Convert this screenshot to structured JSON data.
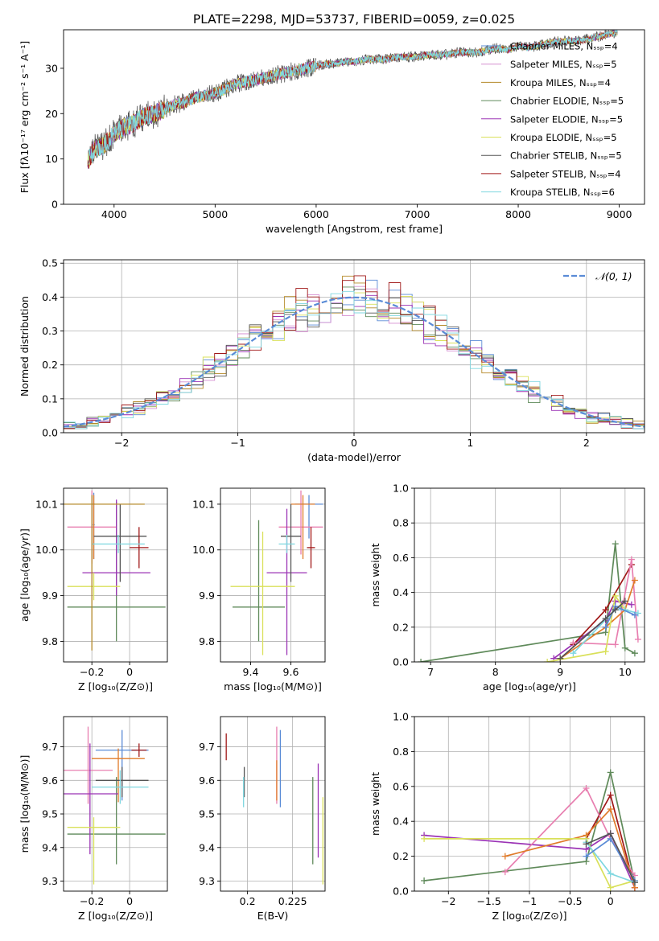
{
  "figure": {
    "title": "PLATE=2298, MJD=53737, FIBERID=0059, z=0.025"
  },
  "colors": {
    "grid": "#b0b0b0",
    "frame": "#000000"
  },
  "chart_data": [
    {
      "id": "spectrum",
      "type": "line",
      "xlabel": "wavelength [Angstrom, rest frame]",
      "ylabel": "Flux [fλ10⁻¹⁷ erg cm⁻² s⁻¹ A⁻¹]",
      "xlim": [
        3500,
        9250
      ],
      "ylim": [
        0,
        38.5
      ],
      "xticks": [
        4000,
        5000,
        6000,
        7000,
        8000,
        9000
      ],
      "yticks": [
        0,
        10,
        20,
        30
      ],
      "grid": false,
      "legend_position": "top-right",
      "spectrum_x": [
        3740,
        3800,
        3900,
        4000,
        4100,
        4200,
        4300,
        4400,
        4500,
        4600,
        4700,
        4800,
        4900,
        5000,
        5100,
        5200,
        5300,
        5400,
        5500,
        5600,
        5700,
        5800,
        5900,
        6000,
        6100,
        6200,
        6300,
        6400,
        6500,
        6600,
        6700,
        6800,
        6900,
        7000,
        7100,
        7200,
        7300,
        7400,
        7500,
        7600,
        7700,
        7800,
        7900,
        8000,
        8100,
        8200,
        8300,
        8400,
        8500,
        8600,
        8700,
        8800,
        8900,
        8980
      ],
      "spectrum_y": [
        9.5,
        12.0,
        13.0,
        15.5,
        17.0,
        18.0,
        19.5,
        20.0,
        21.0,
        22.0,
        22.5,
        23.5,
        24.0,
        24.5,
        25.5,
        26.5,
        27.0,
        27.5,
        28.0,
        28.5,
        29.0,
        29.5,
        30.0,
        30.5,
        31.0,
        31.0,
        31.5,
        31.5,
        32.0,
        32.0,
        32.0,
        32.5,
        32.5,
        32.5,
        33.0,
        33.0,
        33.0,
        33.5,
        33.5,
        33.5,
        34.0,
        34.5,
        34.0,
        35.0,
        34.5,
        35.0,
        35.5,
        36.0,
        36.0,
        36.0,
        36.5,
        37.0,
        37.5,
        38.0
      ],
      "series": [
        {
          "name": "Chabrier MILES, Nₛₛₚ=4",
          "color": "#5a8bd6"
        },
        {
          "name": "Salpeter MILES, Nₛₛₚ=5",
          "color": "#d58fd0"
        },
        {
          "name": "Kroupa MILES, Nₛₛₚ=4",
          "color": "#b58a2a"
        },
        {
          "name": "Chabrier ELODIE, Nₛₛₚ=5",
          "color": "#5f8a5a"
        },
        {
          "name": "Salpeter ELODIE, Nₛₛₚ=5",
          "color": "#9b33b5"
        },
        {
          "name": "Kroupa ELODIE, Nₛₛₚ=5",
          "color": "#d9e05a"
        },
        {
          "name": "Chabrier STELIB, Nₛₛₚ=5",
          "color": "#555555"
        },
        {
          "name": "Salpeter STELIB, Nₛₛₚ=4",
          "color": "#a01818"
        },
        {
          "name": "Kroupa STELIB, Nₛₛₚ=6",
          "color": "#7fd7e0"
        }
      ]
    },
    {
      "id": "residuals",
      "type": "line",
      "xlabel": "(data-model)/error",
      "ylabel": "Normed distribution",
      "xlim": [
        -2.5,
        2.5
      ],
      "ylim": [
        0,
        0.51
      ],
      "xticks": [
        -2,
        -1,
        0,
        1,
        2
      ],
      "yticks": [
        0.0,
        0.1,
        0.2,
        0.3,
        0.4,
        0.5
      ],
      "grid": true,
      "legend_position": "top-right",
      "gauss_label": "𝒩(0, 1)",
      "bins": [
        -2.5,
        2.5,
        50
      ]
    },
    {
      "id": "age_vs_Z",
      "type": "scatter",
      "xlabel": "Z [log₁₀(Z/Z⊙)]",
      "ylabel": "age  [log₁₀(age/yr)]",
      "xlim": [
        -0.35,
        0.2
      ],
      "ylim": [
        9.755,
        10.135
      ],
      "xticks": [
        -0.2,
        0.0
      ],
      "yticks": [
        9.8,
        9.9,
        10.0,
        10.1
      ],
      "grid": true,
      "points": [
        {
          "x": -0.19,
          "y": 10.055,
          "xerr": 0.005,
          "yerr": [
            0.075,
            0.07
          ],
          "color": "#5a8bd6"
        },
        {
          "x": -0.2,
          "y": 10.05,
          "xerr": 0.13,
          "yerr": [
            0.08,
            0.08
          ],
          "color": "#e87fb0"
        },
        {
          "x": -0.19,
          "y": 10.1,
          "xerr": 0.005,
          "yerr": [
            0.12,
            0.02
          ],
          "color": "#e07b2a"
        },
        {
          "x": -0.07,
          "y": 9.875,
          "xerr": 0.26,
          "yerr": [
            0.075,
            0.23
          ],
          "color": "#5f8a5a"
        },
        {
          "x": -0.07,
          "y": 9.95,
          "xerr": 0.18,
          "yerr": [
            0.05,
            0.16
          ],
          "color": "#9b33b5"
        },
        {
          "x": -0.19,
          "y": 9.92,
          "xerr": 0.14,
          "yerr": [
            0.03,
            0.03
          ],
          "color": "#d9e05a"
        },
        {
          "x": -0.05,
          "y": 10.03,
          "xerr": 0.14,
          "yerr": [
            0.1,
            0.07
          ],
          "color": "#555555"
        },
        {
          "x": 0.05,
          "y": 10.005,
          "xerr": 0.05,
          "yerr": [
            0.045,
            0.045
          ],
          "color": "#a01818"
        },
        {
          "x": -0.06,
          "y": 10.013,
          "xerr": 0.14,
          "yerr": [
            0.02,
            0.02
          ],
          "color": "#7fd7e0"
        },
        {
          "x": -0.2,
          "y": 10.1,
          "xerr": 0.28,
          "yerr": [
            0.32,
            0.02
          ],
          "color": "#b58a2a"
        }
      ]
    },
    {
      "id": "age_vs_mass",
      "type": "scatter",
      "xlabel": "mass [log₁₀(M/M⊙)]",
      "ylabel": "",
      "xlim": [
        9.25,
        9.77
      ],
      "ylim": [
        9.755,
        10.135
      ],
      "xticks": [
        9.4,
        9.6
      ],
      "yticks": [
        9.8,
        9.9,
        10.0,
        10.1
      ],
      "grid": true,
      "points": [
        {
          "x": 9.69,
          "y": 10.1,
          "xerr": 0.07,
          "yerr": [
            0.075,
            0.02
          ],
          "color": "#5a8bd6"
        },
        {
          "x": 9.65,
          "y": 10.05,
          "xerr": 0.11,
          "yerr": [
            0.06,
            0.08
          ],
          "color": "#e87fb0"
        },
        {
          "x": 9.66,
          "y": 10.1,
          "xerr": 0.06,
          "yerr": [
            0.12,
            0.02
          ],
          "color": "#e07b2a"
        },
        {
          "x": 9.44,
          "y": 9.875,
          "xerr": 0.13,
          "yerr": [
            0.075,
            0.19
          ],
          "color": "#5f8a5a"
        },
        {
          "x": 9.58,
          "y": 9.95,
          "xerr": 0.1,
          "yerr": [
            0.18,
            0.14
          ],
          "color": "#9b33b5"
        },
        {
          "x": 9.46,
          "y": 9.92,
          "xerr": 0.16,
          "yerr": [
            0.15,
            0.12
          ],
          "color": "#d9e05a"
        },
        {
          "x": 9.6,
          "y": 10.03,
          "xerr": 0.05,
          "yerr": [
            0.1,
            0.07
          ],
          "color": "#555555"
        },
        {
          "x": 9.7,
          "y": 10.005,
          "xerr": 0.02,
          "yerr": [
            0.045,
            0.045
          ],
          "color": "#a01818"
        },
        {
          "x": 9.58,
          "y": 10.013,
          "xerr": 0.04,
          "yerr": [
            0.02,
            0.02
          ],
          "color": "#7fd7e0"
        }
      ]
    },
    {
      "id": "mass_vs_Z",
      "type": "scatter",
      "xlabel": "Z [log₁₀(Z/Z⊙)]",
      "ylabel": "mass [log₁₀(M/M⊙)]",
      "xlim": [
        -0.35,
        0.2
      ],
      "ylim": [
        9.27,
        9.79
      ],
      "xticks": [
        -0.2,
        0.0
      ],
      "yticks": [
        9.3,
        9.4,
        9.5,
        9.6,
        9.7
      ],
      "grid": true,
      "points": [
        {
          "x": -0.04,
          "y": 9.69,
          "xerr": 0.14,
          "yerr": [
            0.15,
            0.06
          ],
          "color": "#5a8bd6"
        },
        {
          "x": -0.22,
          "y": 9.63,
          "xerr": 0.13,
          "yerr": [
            0.1,
            0.13
          ],
          "color": "#e87fb0"
        },
        {
          "x": -0.06,
          "y": 9.665,
          "xerr": 0.14,
          "yerr": [
            0.13,
            0.03
          ],
          "color": "#e07b2a"
        },
        {
          "x": -0.07,
          "y": 9.44,
          "xerr": 0.26,
          "yerr": [
            0.09,
            0.17
          ],
          "color": "#5f8a5a"
        },
        {
          "x": -0.21,
          "y": 9.56,
          "xerr": 0.15,
          "yerr": [
            0.18,
            0.15
          ],
          "color": "#9b33b5"
        },
        {
          "x": -0.19,
          "y": 9.46,
          "xerr": 0.14,
          "yerr": [
            0.17,
            0.03
          ],
          "color": "#d9e05a"
        },
        {
          "x": -0.04,
          "y": 9.6,
          "xerr": 0.14,
          "yerr": [
            0.05,
            0.04
          ],
          "color": "#555555"
        },
        {
          "x": 0.05,
          "y": 9.69,
          "xerr": 0.04,
          "yerr": [
            0.02,
            0.02
          ],
          "color": "#a01818"
        },
        {
          "x": -0.05,
          "y": 9.58,
          "xerr": 0.15,
          "yerr": [
            0.05,
            0.05
          ],
          "color": "#7fd7e0"
        }
      ]
    },
    {
      "id": "mass_vs_ebv",
      "type": "scatter",
      "xlabel": "E(B-V)",
      "ylabel": "",
      "xlim": [
        0.185,
        0.243
      ],
      "ylim": [
        9.27,
        9.79
      ],
      "xticks": [
        0.2,
        0.225
      ],
      "yticks": [
        9.3,
        9.4,
        9.5,
        9.6,
        9.7
      ],
      "grid": true,
      "points": [
        {
          "x": 0.2182,
          "y": 9.66,
          "xerr": 0,
          "yerr": [
            0.14,
            0.09
          ],
          "color": "#5a8bd6"
        },
        {
          "x": 0.2162,
          "y": 9.63,
          "xerr": 0,
          "yerr": [
            0.1,
            0.13
          ],
          "color": "#e87fb0"
        },
        {
          "x": 0.2162,
          "y": 9.61,
          "xerr": 0,
          "yerr": [
            0.07,
            0.05
          ],
          "color": "#e07b2a"
        },
        {
          "x": 0.2362,
          "y": 9.48,
          "xerr": 0,
          "yerr": [
            0.13,
            0.13
          ],
          "color": "#5f8a5a"
        },
        {
          "x": 0.2392,
          "y": 9.51,
          "xerr": 0,
          "yerr": [
            0.14,
            0.14
          ],
          "color": "#9b33b5"
        },
        {
          "x": 0.2418,
          "y": 9.42,
          "xerr": 0,
          "yerr": [
            0.13,
            0.13
          ],
          "color": "#d9e05a"
        },
        {
          "x": 0.1982,
          "y": 9.6,
          "xerr": 0,
          "yerr": [
            0.05,
            0.04
          ],
          "color": "#555555"
        },
        {
          "x": 0.1882,
          "y": 9.7,
          "xerr": 0,
          "yerr": [
            0.04,
            0.04
          ],
          "color": "#a01818"
        },
        {
          "x": 0.1978,
          "y": 9.57,
          "xerr": 0,
          "yerr": [
            0.05,
            0.04
          ],
          "color": "#7fd7e0"
        }
      ]
    },
    {
      "id": "mass_weight_vs_age",
      "type": "line",
      "xlabel": "age  [log₁₀(age/yr)]",
      "ylabel": "mass weight",
      "xlim": [
        6.75,
        10.3
      ],
      "ylim": [
        0,
        1.0
      ],
      "xticks": [
        7,
        8,
        9,
        10
      ],
      "yticks": [
        0.0,
        0.2,
        0.4,
        0.6,
        0.8,
        1.0
      ],
      "grid": true,
      "series": [
        {
          "color": "#5f8a5a",
          "points": [
            [
              6.85,
              0.0
            ],
            [
              9.7,
              0.17
            ],
            [
              9.85,
              0.68
            ],
            [
              10.0,
              0.08
            ],
            [
              10.15,
              0.05
            ]
          ]
        },
        {
          "color": "#9b33b5",
          "points": [
            [
              8.9,
              0.02
            ],
            [
              9.7,
              0.24
            ],
            [
              9.85,
              0.35
            ],
            [
              10.1,
              0.33
            ]
          ]
        },
        {
          "color": "#a01818",
          "points": [
            [
              9.2,
              0.1
            ],
            [
              9.7,
              0.3
            ],
            [
              10.1,
              0.56
            ]
          ]
        },
        {
          "color": "#e87fb0",
          "points": [
            [
              9.2,
              0.11
            ],
            [
              9.85,
              0.1
            ],
            [
              10.1,
              0.59
            ],
            [
              10.2,
              0.13
            ]
          ]
        },
        {
          "color": "#e07b2a",
          "points": [
            [
              9.0,
              0.02
            ],
            [
              9.7,
              0.2
            ],
            [
              10.0,
              0.3
            ],
            [
              10.15,
              0.47
            ]
          ]
        },
        {
          "color": "#d9e05a",
          "points": [
            [
              8.8,
              0.0
            ],
            [
              9.7,
              0.06
            ],
            [
              9.85,
              0.38
            ],
            [
              10.0,
              0.3
            ]
          ]
        },
        {
          "color": "#7fd7e0",
          "points": [
            [
              9.2,
              0.05
            ],
            [
              9.85,
              0.3
            ],
            [
              10.0,
              0.3
            ],
            [
              10.2,
              0.28
            ]
          ]
        },
        {
          "color": "#5a8bd6",
          "points": [
            [
              9.7,
              0.2
            ],
            [
              9.85,
              0.32
            ],
            [
              10.15,
              0.27
            ]
          ]
        },
        {
          "color": "#555555",
          "points": [
            [
              9.0,
              0.02
            ],
            [
              9.7,
              0.25
            ],
            [
              9.85,
              0.3
            ],
            [
              10.0,
              0.35
            ]
          ]
        }
      ]
    },
    {
      "id": "mass_weight_vs_Z",
      "type": "line",
      "xlabel": "Z [log₁₀(Z/Z⊙)]",
      "ylabel": "mass weight",
      "xlim": [
        -2.42,
        0.42
      ],
      "ylim": [
        0,
        1.0
      ],
      "xticks": [
        -2.0,
        -1.5,
        -1.0,
        -0.5,
        0.0
      ],
      "yticks": [
        0.0,
        0.2,
        0.4,
        0.6,
        0.8,
        1.0
      ],
      "grid": true,
      "series": [
        {
          "color": "#5f8a5a",
          "points": [
            [
              -2.3,
              0.06
            ],
            [
              -0.3,
              0.17
            ],
            [
              0.0,
              0.68
            ],
            [
              0.3,
              0.05
            ]
          ]
        },
        {
          "color": "#9b33b5",
          "points": [
            [
              -2.3,
              0.32
            ],
            [
              -0.3,
              0.24
            ],
            [
              0.0,
              0.33
            ],
            [
              0.3,
              0.02
            ]
          ]
        },
        {
          "color": "#a01818",
          "points": [
            [
              -0.3,
              0.3
            ],
            [
              0.0,
              0.55
            ],
            [
              0.3,
              0.02
            ]
          ]
        },
        {
          "color": "#e87fb0",
          "points": [
            [
              -1.3,
              0.11
            ],
            [
              -0.3,
              0.59
            ],
            [
              0.0,
              0.3
            ],
            [
              0.3,
              0.09
            ]
          ]
        },
        {
          "color": "#e07b2a",
          "points": [
            [
              -1.3,
              0.2
            ],
            [
              -0.3,
              0.32
            ],
            [
              0.0,
              0.47
            ],
            [
              0.3,
              0.02
            ]
          ]
        },
        {
          "color": "#d9e05a",
          "points": [
            [
              -2.3,
              0.3
            ],
            [
              -0.3,
              0.3
            ],
            [
              0.0,
              0.02
            ],
            [
              0.3,
              0.06
            ]
          ]
        },
        {
          "color": "#7fd7e0",
          "points": [
            [
              -0.3,
              0.28
            ],
            [
              0.0,
              0.1
            ],
            [
              0.3,
              0.05
            ]
          ]
        },
        {
          "color": "#5a8bd6",
          "points": [
            [
              -0.3,
              0.2
            ],
            [
              0.0,
              0.3
            ],
            [
              0.3,
              0.06
            ]
          ]
        },
        {
          "color": "#555555",
          "points": [
            [
              -0.3,
              0.27
            ],
            [
              0.0,
              0.33
            ],
            [
              0.3,
              0.05
            ]
          ]
        }
      ]
    }
  ]
}
